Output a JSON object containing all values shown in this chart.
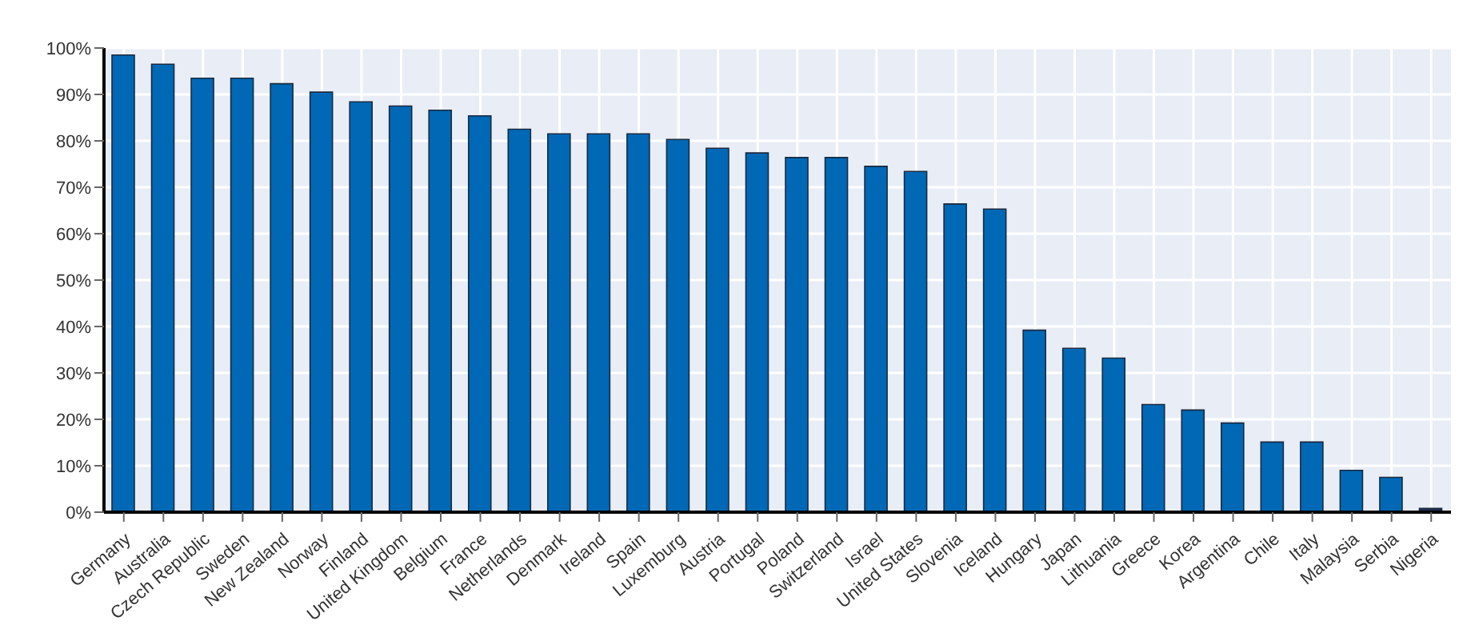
{
  "chart_data": {
    "type": "bar",
    "categories": [
      "Germany",
      "Australia",
      "Czech Republic",
      "Sweden",
      "New Zealand",
      "Norway",
      "Finland",
      "United Kingdom",
      "Belgium",
      "France",
      "Netherlands",
      "Denmark",
      "Ireland",
      "Spain",
      "Luxemburg",
      "Austria",
      "Portugal",
      "Poland",
      "Switzerland",
      "Israel",
      "United States",
      "Slovenia",
      "Iceland",
      "Hungary",
      "Japan",
      "Lithuania",
      "Greece",
      "Korea",
      "Argentina",
      "Chile",
      "Italy",
      "Malaysia",
      "Serbia",
      "Nigeria"
    ],
    "values": [
      98.5,
      96.5,
      93.5,
      93.5,
      92.3,
      90.5,
      88.4,
      87.5,
      86.6,
      85.4,
      82.5,
      81.5,
      81.5,
      81.5,
      80.3,
      78.4,
      77.4,
      76.4,
      76.4,
      74.5,
      73.4,
      66.4,
      65.3,
      39.2,
      35.3,
      33.2,
      23.2,
      22.0,
      19.2,
      15.1,
      15.1,
      9.0,
      7.5,
      0.8
    ],
    "colors": [
      "#0068b5",
      "#0068b5",
      "#0068b5",
      "#0068b5",
      "#0068b5",
      "#0068b5",
      "#0068b5",
      "#0068b5",
      "#0068b5",
      "#0068b5",
      "#0068b5",
      "#0068b5",
      "#0068b5",
      "#0068b5",
      "#0068b5",
      "#0068b5",
      "#0068b5",
      "#0068b5",
      "#0068b5",
      "#0068b5",
      "#0068b5",
      "#0068b5",
      "#0068b5",
      "#0068b5",
      "#0068b5",
      "#0068b5",
      "#0068b5",
      "#0068b5",
      "#0068b5",
      "#0068b5",
      "#0068b5",
      "#0068b5",
      "#0068b5",
      "#1f3050"
    ],
    "ylim": [
      0,
      100
    ],
    "yticks": [
      {
        "value": 0,
        "label": "0%"
      },
      {
        "value": 10,
        "label": "10%"
      },
      {
        "value": 20,
        "label": "20%"
      },
      {
        "value": 30,
        "label": "30%"
      },
      {
        "value": 40,
        "label": "40%"
      },
      {
        "value": 50,
        "label": "50%"
      },
      {
        "value": 60,
        "label": "60%"
      },
      {
        "value": 70,
        "label": "70%"
      },
      {
        "value": 80,
        "label": "80%"
      },
      {
        "value": 90,
        "label": "90%"
      },
      {
        "value": 100,
        "label": "100%"
      }
    ],
    "grid": true
  }
}
